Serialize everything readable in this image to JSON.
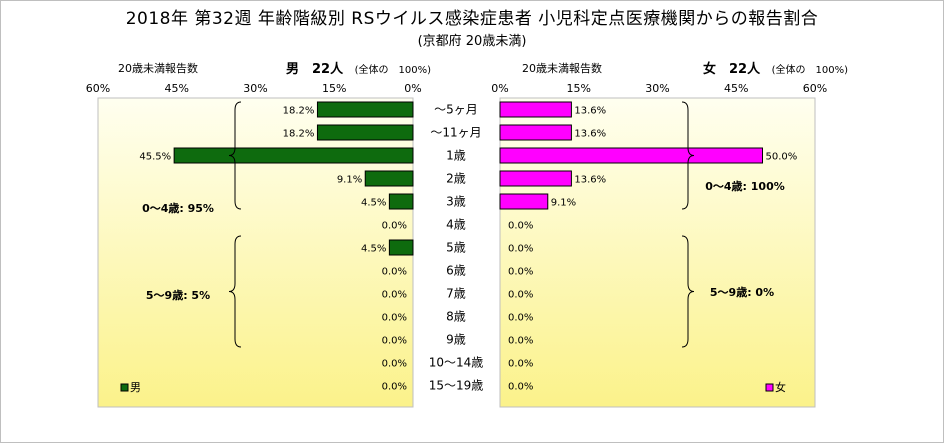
{
  "title": "2018年 第32週 年齢階級別 RSウイルス感染症患者 小児科定点医療機関からの報告割合",
  "subtitle": "(京都府 20歳未満)",
  "left_header": {
    "label": "20歳未満報告数",
    "sex_count": "男　22人",
    "share": "(全体の　100%)"
  },
  "right_header": {
    "label": "20歳未満報告数",
    "sex_count": "女　22人",
    "share": "(全体の　100%)"
  },
  "colors": {
    "male": "#0e6b0e",
    "female": "#ff00ff",
    "plot_top": "#fffff0",
    "plot_bottom": "#fbf28a"
  },
  "chart_data": {
    "type": "bar",
    "orientation": "horizontal-butterfly",
    "categories": [
      "～5ヶ月",
      "～11ヶ月",
      "1歳",
      "2歳",
      "3歳",
      "4歳",
      "5歳",
      "6歳",
      "7歳",
      "8歳",
      "9歳",
      "10～14歳",
      "15～19歳"
    ],
    "series": [
      {
        "name": "男",
        "side": "left",
        "values": [
          18.2,
          18.2,
          45.5,
          9.1,
          4.5,
          0.0,
          4.5,
          0.0,
          0.0,
          0.0,
          0.0,
          0.0,
          0.0
        ],
        "labels": [
          "18.2%",
          "18.2%",
          "45.5%",
          "9.1%",
          "4.5%",
          "0.0%",
          "4.5%",
          "0.0%",
          "0.0%",
          "0.0%",
          "0.0%",
          "0.0%",
          "0.0%"
        ]
      },
      {
        "name": "女",
        "side": "right",
        "values": [
          13.6,
          13.6,
          50.0,
          13.6,
          9.1,
          0.0,
          0.0,
          0.0,
          0.0,
          0.0,
          0.0,
          0.0,
          0.0
        ],
        "labels": [
          "13.6%",
          "13.6%",
          "50.0%",
          "13.6%",
          "9.1%",
          "0.0%",
          "0.0%",
          "0.0%",
          "0.0%",
          "0.0%",
          "0.0%",
          "0.0%",
          "0.0%"
        ]
      }
    ],
    "xlim": [
      0,
      60
    ],
    "left_ticks": [
      "60%",
      "45%",
      "30%",
      "15%",
      "0%"
    ],
    "right_ticks": [
      "0%",
      "15%",
      "30%",
      "45%",
      "60%"
    ],
    "annotations": {
      "male_0_4": "0～4歳: 95%",
      "male_5_9": "5～9歳: 5%",
      "female_0_4": "0～4歳: 100%",
      "female_5_9": "5～9歳: 0%"
    },
    "legend": {
      "male": "男",
      "female": "女",
      "placement": "bottom-left / bottom-right"
    },
    "grid": false
  }
}
